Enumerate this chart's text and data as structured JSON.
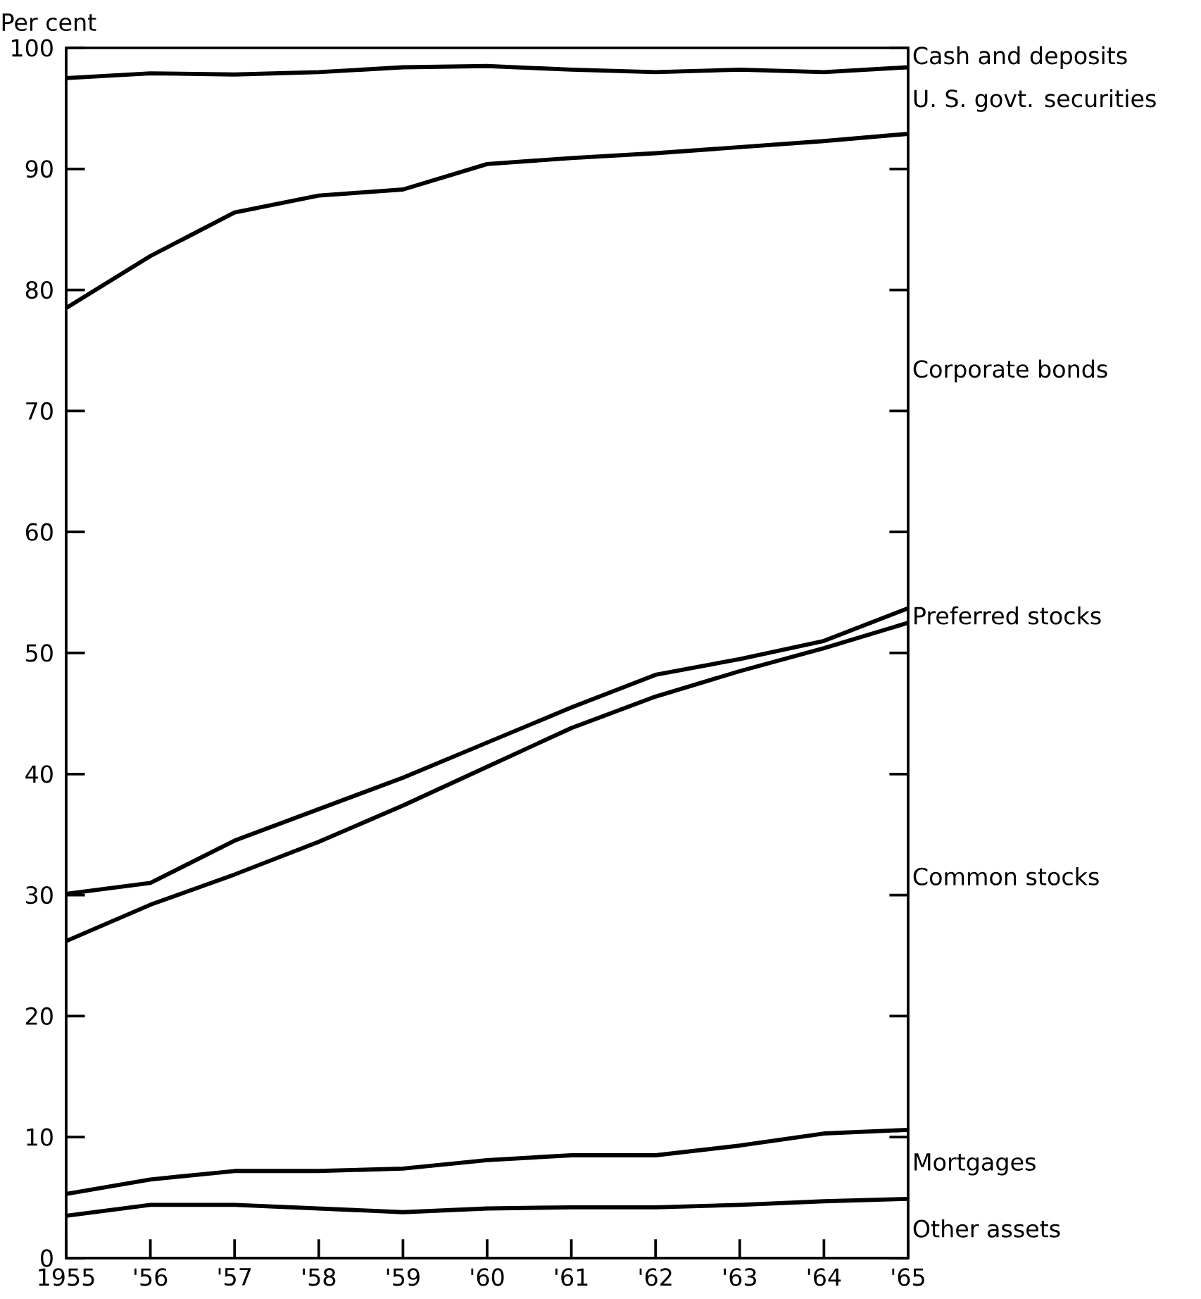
{
  "chart_data": {
    "type": "line",
    "ylabel": "Per cent",
    "x": [
      1955,
      1956,
      1957,
      1958,
      1959,
      1960,
      1961,
      1962,
      1963,
      1964,
      1965
    ],
    "xlim": [
      1955,
      1965
    ],
    "xticks": [
      1955,
      {
        "value": 1956,
        "label": "'56"
      },
      {
        "value": 1957,
        "label": "'57"
      },
      {
        "value": 1958,
        "label": "'58"
      },
      {
        "value": 1959,
        "label": "'59"
      },
      {
        "value": 1960,
        "label": "'60"
      },
      {
        "value": 1961,
        "label": "'61"
      },
      {
        "value": 1962,
        "label": "'62"
      },
      {
        "value": 1963,
        "label": "'63"
      },
      {
        "value": 1964,
        "label": "'64"
      },
      {
        "value": 1965,
        "label": "'65"
      }
    ],
    "ylim": [
      0,
      100
    ],
    "yticks": [
      0,
      10,
      20,
      30,
      40,
      50,
      60,
      70,
      80,
      90,
      100
    ],
    "series": [
      {
        "color": "#000000",
        "values": [
          97.5,
          97.9,
          97.8,
          98.0,
          98.4,
          98.5,
          98.2,
          98.0,
          98.2,
          98.0,
          98.4
        ]
      },
      {
        "color": "#000000",
        "values": [
          78.5,
          82.8,
          86.4,
          87.8,
          88.3,
          90.4,
          90.9,
          91.3,
          91.8,
          92.3,
          92.9
        ]
      },
      {
        "color": "#000000",
        "values": [
          30.1,
          31.0,
          34.5,
          37.1,
          39.7,
          42.6,
          45.5,
          48.2,
          49.5,
          51.0,
          53.7
        ]
      },
      {
        "color": "#000000",
        "values": [
          26.2,
          29.2,
          31.7,
          34.4,
          37.4,
          40.6,
          43.8,
          46.4,
          48.5,
          50.4,
          52.5
        ]
      },
      {
        "color": "#000000",
        "values": [
          5.3,
          6.5,
          7.2,
          7.2,
          7.4,
          8.1,
          8.5,
          8.5,
          9.3,
          10.3,
          10.6
        ]
      },
      {
        "color": "#000000",
        "values": [
          3.5,
          4.4,
          4.4,
          4.1,
          3.8,
          4.1,
          4.2,
          4.2,
          4.4,
          4.7,
          4.9
        ]
      }
    ],
    "annotations": [
      "Cash and deposits",
      "U. S. govt. securities",
      "Corporate bonds",
      "Preferred stocks",
      "Common stocks",
      "Mortgages",
      "Other assets"
    ]
  }
}
